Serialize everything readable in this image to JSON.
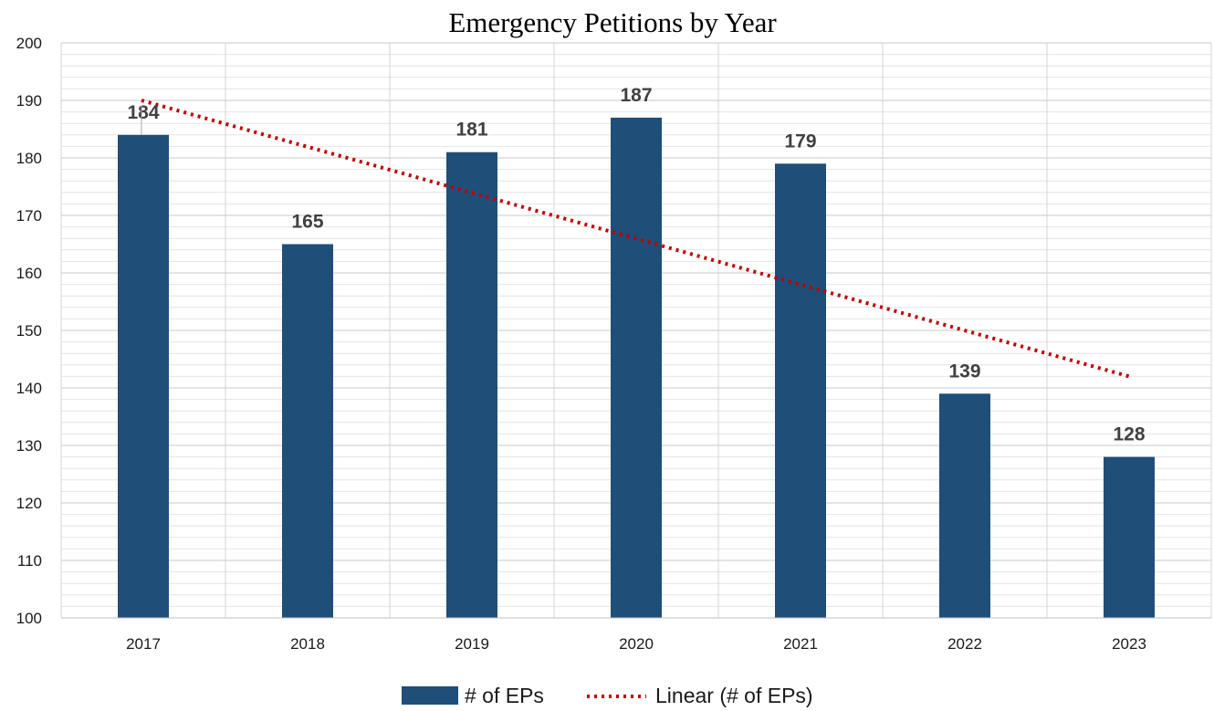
{
  "chart_data": {
    "type": "bar",
    "title": "Emergency Petitions by Year",
    "categories": [
      "2017",
      "2018",
      "2019",
      "2020",
      "2021",
      "2022",
      "2023"
    ],
    "series": [
      {
        "name": "# of EPs",
        "values": [
          184,
          165,
          181,
          187,
          179,
          139,
          128
        ],
        "color": "#1f4e79"
      }
    ],
    "trendline": {
      "name": "Linear (# of EPs)",
      "type": "linear",
      "start": 190,
      "end": 142,
      "color": "#c00000",
      "style": "dotted"
    },
    "data_labels": [
      "184",
      "165",
      "181",
      "187",
      "179",
      "139",
      "128"
    ],
    "yticks": [
      "100",
      "110",
      "120",
      "130",
      "140",
      "150",
      "160",
      "170",
      "180",
      "190",
      "200"
    ],
    "ylim": [
      100,
      200
    ],
    "grid": {
      "major": true,
      "minor": true,
      "vertical": true
    },
    "legend": {
      "position": "bottom",
      "entries": [
        "# of EPs",
        "Linear (# of EPs)"
      ]
    },
    "xlabel": "",
    "ylabel": ""
  }
}
